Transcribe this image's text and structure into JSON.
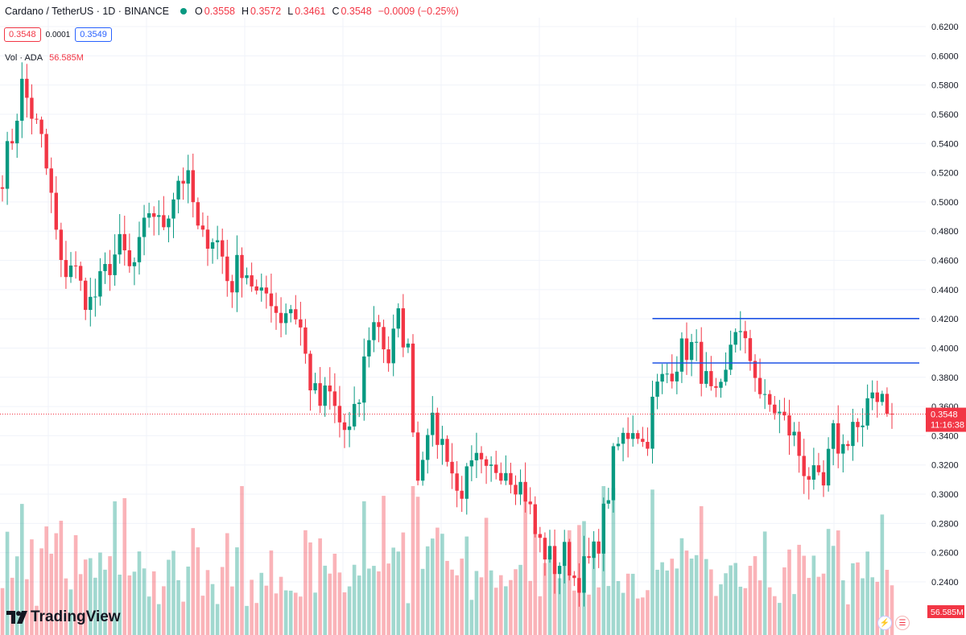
{
  "header": {
    "symbol": "Cardano / TetherUS · 1D · BINANCE",
    "open_label": "O",
    "open": "0.3558",
    "high_label": "H",
    "high": "0.3572",
    "low_label": "L",
    "low": "0.3461",
    "close_label": "C",
    "close": "0.3548",
    "change": "−0.0009 (−0.25%)",
    "sell_price": "0.3548",
    "spread": "0.0001",
    "buy_price": "0.3549"
  },
  "volume": {
    "label": "Vol · ADA",
    "value": "56.585M"
  },
  "price_tag": {
    "price": "0.3548",
    "countdown": "11:16:38"
  },
  "logo": {
    "text": "TradingView"
  },
  "colors": {
    "up": "#089981",
    "down": "#f23645",
    "levels": "#1e53e5",
    "grid": "#f0f3fa"
  },
  "icons": [
    "lightning-icon",
    "us-flag-icon"
  ],
  "chart_data": {
    "type": "candlestick",
    "title": "Cardano / TetherUS · 1D · BINANCE",
    "ylim": [
      0.23,
      0.625
    ],
    "y_ticks": [
      "0.6200",
      "0.6000",
      "0.5800",
      "0.5600",
      "0.5400",
      "0.5200",
      "0.5000",
      "0.4800",
      "0.4600",
      "0.4400",
      "0.4200",
      "0.4000",
      "0.3800",
      "0.3600",
      "0.3400",
      "0.3200",
      "0.3000",
      "0.2800",
      "0.2600",
      "0.2400"
    ],
    "current_price": 0.3548,
    "horizontal_levels": [
      0.4202,
      0.3898
    ],
    "grid": true,
    "path": [
      0.52,
      0.545,
      0.58,
      0.56,
      0.54,
      0.5,
      0.45,
      0.46,
      0.44,
      0.43,
      0.445,
      0.46,
      0.47,
      0.45,
      0.47,
      0.5,
      0.48,
      0.5,
      0.52,
      0.51,
      0.47,
      0.48,
      0.47,
      0.44,
      0.46,
      0.45,
      0.43,
      0.44,
      0.42,
      0.43,
      0.42,
      0.38,
      0.36,
      0.37,
      0.35,
      0.34,
      0.36,
      0.41,
      0.42,
      0.39,
      0.42,
      0.4,
      0.31,
      0.35,
      0.34,
      0.33,
      0.3,
      0.31,
      0.32,
      0.31,
      0.32,
      0.32,
      0.31,
      0.3,
      0.27,
      0.26,
      0.25,
      0.26,
      0.24,
      0.25,
      0.26,
      0.29,
      0.33,
      0.34,
      0.35,
      0.33,
      0.37,
      0.38,
      0.39,
      0.4,
      0.4,
      0.38,
      0.36,
      0.37,
      0.42,
      0.4,
      0.39,
      0.36,
      0.36,
      0.35,
      0.34,
      0.32,
      0.31,
      0.3,
      0.34,
      0.33,
      0.35,
      0.34,
      0.37,
      0.37,
      0.355
    ],
    "volume_max_M": 160
  }
}
